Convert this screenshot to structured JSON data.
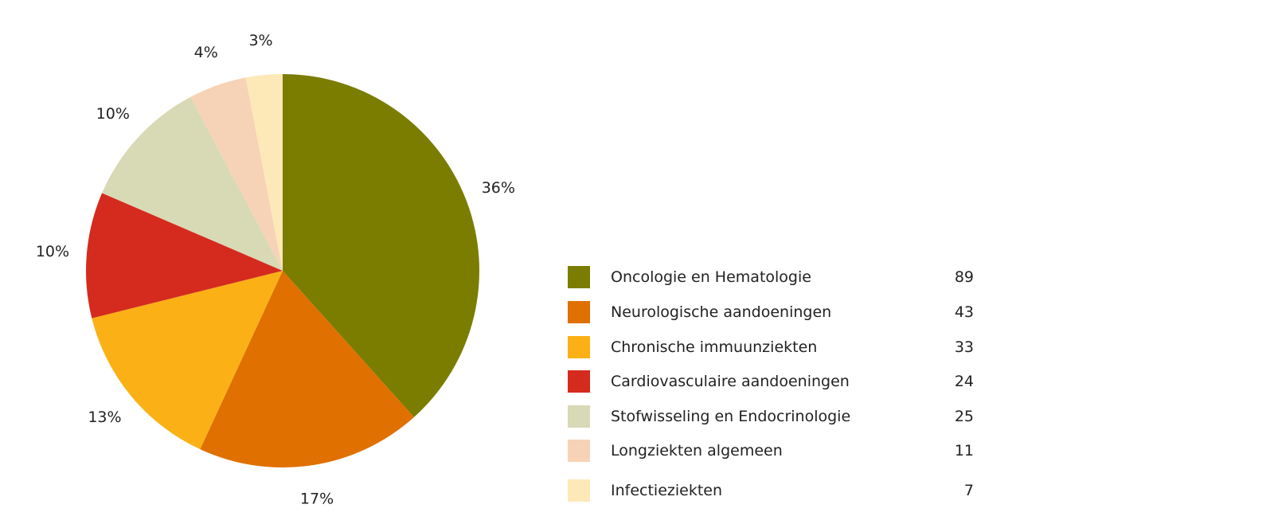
{
  "chart_data": {
    "type": "pie",
    "title": "",
    "slices": [
      {
        "label": "Oncologie en Hematologie",
        "count": 89,
        "percent": 36,
        "color": "#7a7d00"
      },
      {
        "label": "Neurologische aandoeningen",
        "count": 43,
        "percent": 17,
        "color": "#e07000"
      },
      {
        "label": "Chronische immuunziekten",
        "count": 33,
        "percent": 13,
        "color": "#fbb116"
      },
      {
        "label": "Cardiovasculaire aandoeningen",
        "count": 24,
        "percent": 10,
        "color": "#d52b1e"
      },
      {
        "label": "Stofwisseling en Endocrinologie",
        "count": 25,
        "percent": 10,
        "color": "#d8d9b5"
      },
      {
        "label": "Longziekten algemeen",
        "count": 11,
        "percent": 4,
        "color": "#f6d3b6"
      },
      {
        "label": "Infectieziekten",
        "count": 7,
        "percent": 3,
        "color": "#fde8b8"
      }
    ],
    "percent_labels": [
      "36%",
      "17%",
      "13%",
      "10%",
      "10%",
      "4%",
      "3%"
    ],
    "legend_position": "right"
  }
}
